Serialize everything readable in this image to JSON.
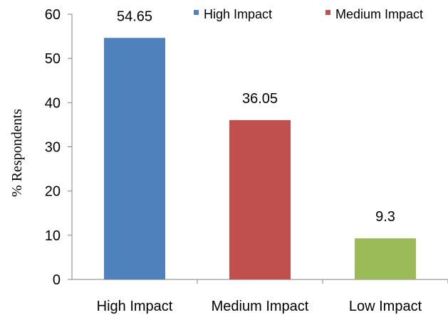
{
  "chart_data": {
    "type": "bar",
    "categories": [
      "High Impact",
      "Medium Impact",
      "Low Impact"
    ],
    "values": [
      54.65,
      36.05,
      9.3
    ],
    "data_labels": [
      "54.65",
      "36.05",
      "9.3"
    ],
    "colors": [
      "#4f81bd",
      "#c0504d",
      "#9bbb59"
    ],
    "title": "",
    "xlabel": "",
    "ylabel": "% Respondents",
    "ylim": [
      0,
      60
    ],
    "yticks": [
      "0",
      "10",
      "20",
      "30",
      "40",
      "50",
      "60"
    ],
    "grid": false,
    "legend": {
      "placement": "top-right",
      "entries": [
        {
          "name": "High Impact",
          "color": "#4f81bd"
        },
        {
          "name": "Medium Impact",
          "color": "#c0504d"
        }
      ]
    }
  }
}
